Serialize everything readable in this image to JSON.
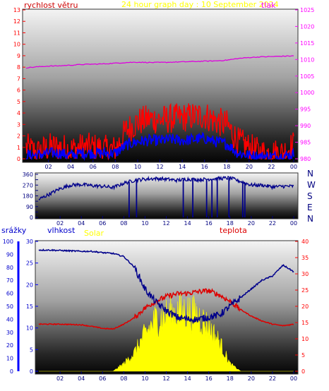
{
  "header": {
    "wind_label": "rychlost větru",
    "title": "24 hour graph day : 10 September 2024",
    "pressure_label": "tlak"
  },
  "compass": [
    "N",
    "W",
    "S",
    "E",
    "N"
  ],
  "lower_labels": {
    "rain": "srážky",
    "humidity": "vlhkost",
    "solar": "Solar",
    "temperature": "teplota"
  },
  "colors": {
    "wind_max": "#ff0000",
    "wind_avg": "#0000ff",
    "pressure": "#dd00dd",
    "direction": "#00008b",
    "humidity": "#00008b",
    "temperature": "#dd0000",
    "solar": "#ffff00",
    "left_axis_top": "#ff0000",
    "right_axis_top": "#ff00ff",
    "left_axis_bottom": "#0000ff",
    "right_axis_bottom": "#ff0000"
  },
  "chart_data": [
    {
      "type": "line",
      "name": "wind-pressure",
      "x_ticks": [
        "02",
        "04",
        "06",
        "08",
        "10",
        "12",
        "14",
        "16",
        "18",
        "20",
        "22",
        "00"
      ],
      "y_left_ticks": [
        0,
        1,
        2,
        3,
        4,
        5,
        6,
        7,
        8,
        9,
        10,
        11,
        12,
        13
      ],
      "y_right_ticks": [
        980,
        985,
        990,
        995,
        1000,
        1005,
        1010,
        1015,
        1020,
        1025
      ],
      "ylim_left": [
        0,
        13
      ],
      "ylim_right": [
        980,
        1025
      ],
      "hours": [
        0,
        1,
        2,
        3,
        4,
        5,
        6,
        7,
        8,
        9,
        10,
        11,
        12,
        13,
        14,
        15,
        16,
        17,
        18,
        19,
        20,
        21,
        22,
        23,
        24
      ],
      "pressure": [
        1007.5,
        1007.8,
        1008.0,
        1008.1,
        1008.3,
        1008.5,
        1008.6,
        1008.7,
        1008.9,
        1009.1,
        1009.2,
        1009.1,
        1009.1,
        1009.2,
        1009.3,
        1009.4,
        1009.5,
        1009.6,
        1009.8,
        1010.3,
        1010.6,
        1010.8,
        1010.9,
        1011.0,
        1011.1
      ],
      "wind_max": [
        1.0,
        0.5,
        1.0,
        1.0,
        0.8,
        1.0,
        1.0,
        0.8,
        0.8,
        2.5,
        3.2,
        3.5,
        3.4,
        3.5,
        3.6,
        3.7,
        3.8,
        3.3,
        3.0,
        1.5,
        1.0,
        0.5,
        0.5,
        0.5,
        1.2
      ],
      "wind_avg": [
        0.3,
        0.3,
        0.5,
        0.5,
        0.3,
        0.5,
        0.5,
        0.5,
        0.5,
        1.2,
        1.5,
        1.6,
        1.6,
        1.7,
        1.6,
        1.7,
        1.8,
        1.5,
        1.3,
        0.5,
        0.3,
        0.2,
        0.2,
        0.2,
        0.4
      ]
    },
    {
      "type": "line",
      "name": "wind-direction",
      "x_ticks": [
        "02",
        "04",
        "06",
        "08",
        "10",
        "12",
        "14",
        "16",
        "18",
        "20",
        "22",
        "00"
      ],
      "y_ticks": [
        0,
        45,
        90,
        135,
        180,
        225,
        270,
        315,
        360
      ],
      "y_tick_labels": [
        "0",
        "",
        "90",
        "",
        "180",
        "",
        "270",
        "",
        "360"
      ],
      "ylim": [
        0,
        360
      ],
      "hours": [
        0,
        1,
        2,
        3,
        4,
        5,
        6,
        7,
        8,
        9,
        10,
        11,
        12,
        13,
        14,
        15,
        16,
        17,
        18,
        19,
        20,
        21,
        22,
        23,
        24
      ],
      "direction": [
        150,
        195,
        240,
        270,
        275,
        265,
        260,
        250,
        285,
        310,
        320,
        325,
        320,
        310,
        320,
        315,
        320,
        325,
        330,
        300,
        270,
        270,
        255,
        260,
        260
      ],
      "drops_to_zero_at_hours": [
        8.5,
        9.2,
        13.6,
        14.5,
        15.8,
        16.3,
        16.8,
        17.9,
        19.2,
        19.4
      ]
    },
    {
      "type": "line",
      "name": "humidity-temperature-solar",
      "x_ticks": [
        "02",
        "04",
        "06",
        "08",
        "10",
        "12",
        "14",
        "16",
        "18",
        "20",
        "22",
        "00"
      ],
      "y_rain_ticks": [
        0,
        10,
        20,
        30,
        40,
        50,
        60,
        70,
        80,
        90,
        100
      ],
      "y_humidity_ticks": [
        0,
        5,
        10,
        15,
        20,
        25,
        30
      ],
      "y_temp_ticks": [
        0,
        5,
        10,
        15,
        20,
        25,
        30,
        35,
        40
      ],
      "ylim_humidity": [
        0,
        30
      ],
      "ylim_temp": [
        0,
        40
      ],
      "hours": [
        0,
        1,
        2,
        3,
        4,
        5,
        6,
        7,
        8,
        9,
        10,
        11,
        12,
        13,
        14,
        15,
        16,
        17,
        18,
        19,
        20,
        21,
        22,
        23,
        24
      ],
      "humidity": [
        28.0,
        28.0,
        27.9,
        27.8,
        27.7,
        27.7,
        27.4,
        27.2,
        26.5,
        24.0,
        19.0,
        16.0,
        14.0,
        12.5,
        12.0,
        12.0,
        12.5,
        13.0,
        15.0,
        17.0,
        19.0,
        21.0,
        22.0,
        24.5,
        23.0
      ],
      "temperature": [
        14.5,
        14.5,
        14.5,
        14.4,
        14.3,
        13.8,
        13.2,
        13.0,
        14.5,
        16.5,
        19.5,
        21.5,
        23.0,
        23.8,
        24.0,
        24.5,
        24.8,
        23.5,
        21.5,
        19.0,
        17.0,
        15.5,
        14.5,
        14.0,
        14.5
      ],
      "solar_envelope": [
        0,
        0,
        0,
        0,
        0,
        0,
        0,
        0,
        2,
        5,
        10,
        14,
        15,
        16,
        16,
        15,
        12,
        8,
        2,
        0,
        0,
        0,
        0,
        0,
        0
      ]
    }
  ]
}
